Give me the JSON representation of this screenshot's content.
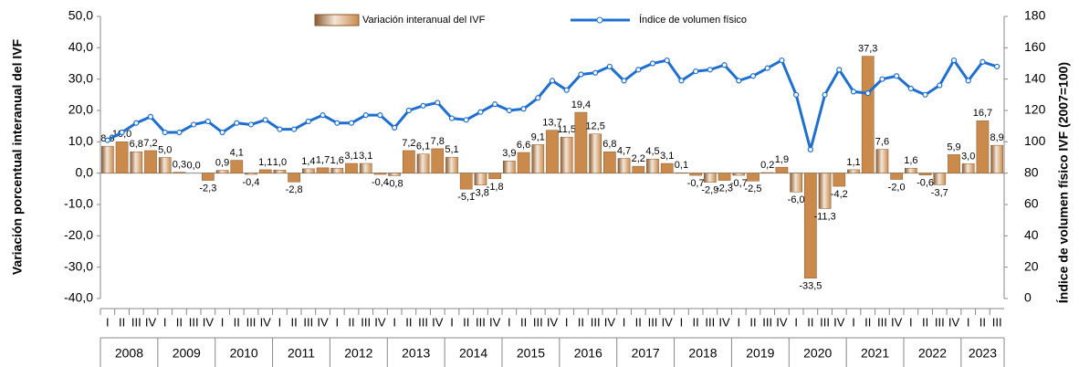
{
  "chart_data": {
    "type": "bar_line",
    "y_label": "Variación porcentual interanual del IVF",
    "y2_label": "Índice de volumen físico IVF (2007=100)",
    "categories": [
      "I",
      "II",
      "III",
      "IV",
      "I",
      "II",
      "III",
      "IV",
      "I",
      "II",
      "III",
      "IV",
      "I",
      "II",
      "III",
      "IV",
      "I",
      "II",
      "III",
      "IV",
      "I",
      "II",
      "III",
      "IV",
      "I",
      "II",
      "III",
      "IV",
      "I",
      "II",
      "III",
      "IV",
      "I",
      "II",
      "III",
      "IV",
      "I",
      "II",
      "III",
      "IV",
      "I",
      "II",
      "III",
      "IV",
      "I",
      "II",
      "III",
      "IV",
      "I",
      "II",
      "III",
      "IV",
      "I",
      "II",
      "III",
      "IV",
      "I",
      "II",
      "III",
      "IV",
      "I",
      "II",
      "III"
    ],
    "years": [
      "2008",
      "2009",
      "2010",
      "2011",
      "2012",
      "2013",
      "2014",
      "2015",
      "2016",
      "2017",
      "2018",
      "2019",
      "2020",
      "2021",
      "2022",
      "2023"
    ],
    "series": [
      {
        "name": "Variación interanual del IVF",
        "kind": "bar",
        "color": "#c98a4b",
        "values": [
          8.6,
          10.0,
          6.8,
          7.2,
          5.0,
          0.3,
          0.0,
          -2.3,
          0.9,
          4.1,
          -0.4,
          1.1,
          1.0,
          -2.8,
          1.4,
          1.7,
          1.6,
          3.1,
          3.1,
          -0.4,
          -0.8,
          7.2,
          6.1,
          7.8,
          5.1,
          -5.1,
          -3.8,
          -1.8,
          3.9,
          6.6,
          9.1,
          13.7,
          11.5,
          19.4,
          12.5,
          6.8,
          4.7,
          2.2,
          4.5,
          3.1,
          0.1,
          -0.7,
          -2.9,
          -2.3,
          -0.7,
          -2.5,
          0.2,
          1.9,
          -6.0,
          -33.5,
          -11.3,
          -4.2,
          1.1,
          37.3,
          7.6,
          -2.0,
          1.6,
          -0.6,
          -3.7,
          5.9,
          3.0,
          16.7,
          8.9
        ],
        "value_labels": [
          "8,6",
          "10,0",
          "6,8",
          "7,2",
          "5,0",
          "0,3",
          "0,0",
          "-2,3",
          "0,9",
          "4,1",
          "-0,4",
          "1,1",
          "1,0",
          "-2,8",
          "1,4",
          "1,7",
          "1,6",
          "3,1",
          "3,1",
          "-0,4",
          "-0,8",
          "7,2",
          "6,1",
          "7,8",
          "5,1",
          "-5,1",
          "-3,8",
          "-1,8",
          "3,9",
          "6,6",
          "9,1",
          "13,7",
          "11,5",
          "19,4",
          "12,5",
          "6,8",
          "4,7",
          "2,2",
          "4,5",
          "3,1",
          "0,1",
          "-0,7",
          "-2,9",
          "-2,3",
          "-0,7",
          "-2,5",
          "0,2",
          "1,9",
          "-6,0",
          "-33,5",
          "-11,3",
          "-4,2",
          "1,1",
          "37,3",
          "7,6",
          "-2,0",
          "1,6",
          "-0,6",
          "-3,7",
          "5,9",
          "3,0",
          "16,7",
          "8,9"
        ]
      },
      {
        "name": "Índice de volumen físico",
        "kind": "line",
        "axis": "y2",
        "color": "#1f6fd1",
        "values": [
          101,
          106,
          112,
          116,
          106,
          106,
          111,
          113,
          106,
          112,
          111,
          114,
          108,
          108,
          113,
          117,
          112,
          112,
          117,
          117,
          109,
          120,
          123,
          125,
          115,
          114,
          119,
          124,
          120,
          121,
          128,
          139,
          133,
          143,
          144,
          148,
          139,
          146,
          150,
          152,
          139,
          145,
          146,
          149,
          139,
          142,
          147,
          152,
          130,
          95,
          130,
          146,
          132,
          131,
          140,
          142,
          134,
          130,
          136,
          152,
          139,
          151,
          148
        ]
      }
    ],
    "ylim": [
      -40,
      50
    ],
    "yticks": [
      {
        "value": -40,
        "label": "-40,0"
      },
      {
        "value": -30,
        "label": "-30,0"
      },
      {
        "value": -20,
        "label": "-20,0"
      },
      {
        "value": -10,
        "label": "-10,0"
      },
      {
        "value": 0,
        "label": "0,0"
      },
      {
        "value": 10,
        "label": "10,0"
      },
      {
        "value": 20,
        "label": "20,0"
      },
      {
        "value": 30,
        "label": "30,0"
      },
      {
        "value": 40,
        "label": "40,0"
      },
      {
        "value": 50,
        "label": "50,0"
      }
    ],
    "y2lim": [
      0,
      180
    ],
    "y2ticks": [
      0,
      20,
      40,
      60,
      80,
      100,
      120,
      140,
      160,
      180
    ]
  }
}
